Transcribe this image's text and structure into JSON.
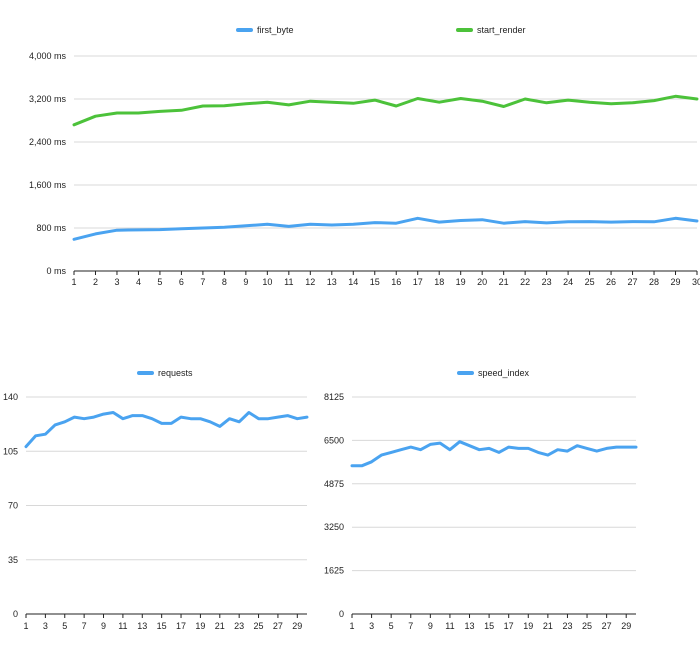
{
  "chart_data": [
    {
      "type": "line",
      "x": [
        1,
        2,
        3,
        4,
        5,
        6,
        7,
        8,
        9,
        10,
        11,
        12,
        13,
        14,
        15,
        16,
        17,
        18,
        19,
        20,
        21,
        22,
        23,
        24,
        25,
        26,
        27,
        28,
        29,
        30
      ],
      "series": [
        {
          "name": "first_byte",
          "color": "#4aa3f0",
          "values": [
            590,
            690,
            760,
            765,
            770,
            785,
            800,
            815,
            840,
            870,
            830,
            870,
            855,
            870,
            900,
            890,
            980,
            910,
            940,
            955,
            890,
            920,
            895,
            915,
            920,
            910,
            920,
            915,
            980,
            930
          ]
        },
        {
          "name": "start_render",
          "color": "#4cc23a",
          "values": [
            2720,
            2880,
            2940,
            2940,
            2970,
            2990,
            3070,
            3075,
            3110,
            3140,
            3090,
            3160,
            3140,
            3120,
            3180,
            3070,
            3210,
            3140,
            3210,
            3160,
            3060,
            3200,
            3130,
            3180,
            3140,
            3110,
            3130,
            3170,
            3250,
            3200
          ]
        }
      ],
      "ylim": [
        0,
        4000
      ],
      "y_ticks": [
        "4,000 ms",
        "3,200 ms",
        "2,400 ms",
        "1,600 ms",
        "800 ms",
        "0 ms"
      ],
      "y_tick_values": [
        4000,
        3200,
        2400,
        1600,
        800,
        0
      ],
      "x_tick_labels": [
        "1",
        "2",
        "3",
        "4",
        "5",
        "6",
        "7",
        "8",
        "9",
        "10",
        "11",
        "12",
        "13",
        "14",
        "15",
        "16",
        "17",
        "18",
        "19",
        "20",
        "21",
        "22",
        "23",
        "24",
        "25",
        "26",
        "27",
        "28",
        "29",
        "30"
      ],
      "grid": "horizontal",
      "legend": "top"
    },
    {
      "type": "line",
      "x": [
        1,
        2,
        3,
        4,
        5,
        6,
        7,
        8,
        9,
        10,
        11,
        12,
        13,
        14,
        15,
        16,
        17,
        18,
        19,
        20,
        21,
        22,
        23,
        24,
        25,
        26,
        27,
        28,
        29,
        30
      ],
      "series": [
        {
          "name": "requests",
          "color": "#4aa3f0",
          "values": [
            108,
            115,
            116,
            122,
            124,
            127,
            126,
            127,
            129,
            130,
            126,
            128,
            128,
            126,
            123,
            123,
            127,
            126,
            126,
            124,
            121,
            126,
            124,
            130,
            126,
            126,
            127,
            128,
            126,
            127
          ]
        }
      ],
      "ylim": [
        0,
        140
      ],
      "y_ticks": [
        "140",
        "105",
        "70",
        "35",
        "0"
      ],
      "y_tick_values": [
        140,
        105,
        70,
        35,
        0
      ],
      "x_tick_labels": [
        "1",
        "3",
        "5",
        "7",
        "9",
        "11",
        "13",
        "15",
        "17",
        "19",
        "21",
        "23",
        "25",
        "27",
        "29"
      ],
      "grid": "horizontal",
      "legend": "top"
    },
    {
      "type": "line",
      "x": [
        1,
        2,
        3,
        4,
        5,
        6,
        7,
        8,
        9,
        10,
        11,
        12,
        13,
        14,
        15,
        16,
        17,
        18,
        19,
        20,
        21,
        22,
        23,
        24,
        25,
        26,
        27,
        28,
        29,
        30
      ],
      "series": [
        {
          "name": "speed_index",
          "color": "#4aa3f0",
          "values": [
            5550,
            5550,
            5700,
            5950,
            6050,
            6150,
            6250,
            6150,
            6350,
            6400,
            6150,
            6450,
            6300,
            6150,
            6200,
            6050,
            6250,
            6200,
            6200,
            6050,
            5950,
            6150,
            6100,
            6300,
            6200,
            6100,
            6200,
            6250,
            6250,
            6250
          ]
        }
      ],
      "ylim": [
        0,
        8125
      ],
      "y_ticks": [
        "8125",
        "6500",
        "4875",
        "3250",
        "1625",
        "0"
      ],
      "y_tick_values": [
        8125,
        6500,
        4875,
        3250,
        1625,
        0
      ],
      "x_tick_labels": [
        "1",
        "3",
        "5",
        "7",
        "9",
        "11",
        "13",
        "15",
        "17",
        "19",
        "21",
        "23",
        "25",
        "27",
        "29"
      ],
      "grid": "horizontal",
      "legend": "top"
    }
  ]
}
